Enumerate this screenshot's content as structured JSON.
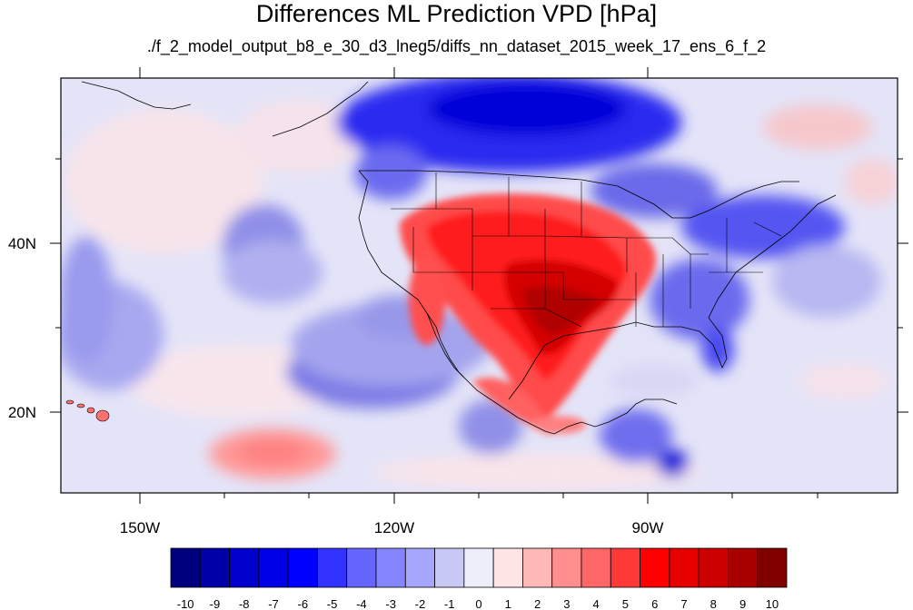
{
  "title": "Differences ML Prediction VPD [hPa]",
  "subtitle": "./f_2_model_output_b8_e_30_d3_lneg5/diffs_nn_dataset_2015_week_17_ens_6_f_2",
  "map": {
    "lon_labels": [
      "150W",
      "120W",
      "90W"
    ],
    "lat_labels": [
      "40N",
      "20N"
    ],
    "region": "North America and eastern North Pacific",
    "field": "VPD prediction difference"
  },
  "colorbar": {
    "labels": [
      "-10",
      "-9",
      "-8",
      "-7",
      "-6",
      "-5",
      "-4",
      "-3",
      "-2",
      "-1",
      "0",
      "1",
      "2",
      "3",
      "4",
      "5",
      "6",
      "7",
      "8",
      "9",
      "10"
    ],
    "colors": [
      "#00007f",
      "#0000a8",
      "#0000cc",
      "#0000e6",
      "#0000ff",
      "#3333ff",
      "#6666ff",
      "#8585ff",
      "#a6a6ff",
      "#c8c8f5",
      "#eeeefa",
      "#ffe5e5",
      "#ffb8b8",
      "#ff8f8f",
      "#ff6666",
      "#ff3838",
      "#ff0000",
      "#e60000",
      "#cc0000",
      "#a80000",
      "#800000"
    ]
  }
}
